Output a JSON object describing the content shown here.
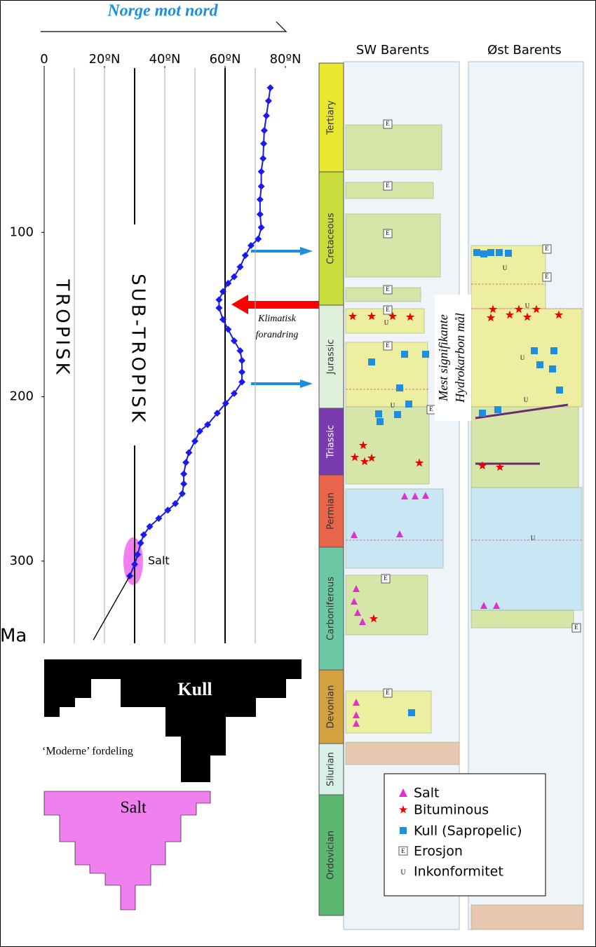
{
  "chart_data": {
    "type": "line",
    "title": "Norge mot nord",
    "xlim": [
      0,
      80
    ],
    "xticks": [
      0,
      {
        "value": 20,
        "label": "20ºN"
      },
      {
        "value": 40,
        "label": "40ºN"
      },
      {
        "value": 60,
        "label": "60ºN"
      },
      {
        "value": 80,
        "label": "80ºN"
      }
    ],
    "xgrid": [
      10,
      20,
      40,
      50,
      70
    ],
    "zone_lines": [
      30,
      60
    ],
    "ylim": [
      0,
      350
    ],
    "yticks": [
      100,
      200,
      300
    ],
    "y_label": "Ma",
    "zone_labels": [
      "TROPISK",
      "SUB-TROPISK"
    ],
    "annotations": [
      "Salt"
    ],
    "series": [
      {
        "color": "#1a1aee",
        "x": [
          75,
          74.4,
          73.7,
          73,
          72.8,
          72.6,
          72,
          72,
          71.6,
          71.6,
          72,
          71,
          68.6,
          66.7,
          65,
          63,
          61,
          59.3,
          58,
          58,
          59.3,
          61,
          63,
          65,
          65.6,
          65.6,
          65.6,
          63,
          60.2,
          57.4,
          54.2,
          51.6,
          50,
          48,
          47,
          46.3,
          46.3,
          45.8,
          43.5,
          41,
          38,
          35,
          33,
          32,
          31,
          30,
          28.4
        ],
        "values": [
          12,
          20,
          29,
          38,
          46,
          55,
          63,
          72,
          80,
          89,
          97,
          104,
          108,
          114,
          121,
          127,
          131,
          136,
          141,
          146,
          153,
          159,
          166,
          172,
          178,
          185,
          191,
          198,
          204,
          210,
          217,
          221,
          227,
          234,
          240,
          247,
          253,
          259,
          265,
          269,
          274,
          279,
          284,
          289,
          296,
          302,
          309
        ]
      },
      {
        "color": "#000000",
        "x": [
          28.4,
          16.3
        ],
        "values": [
          309,
          348
        ]
      }
    ]
  },
  "distribution": {
    "kull": "Kull",
    "label": "‘Moderne’ fordeling",
    "salt": "Salt"
  },
  "arrow_label": [
    "Klimatisk",
    "forandring"
  ],
  "stratigraphy": {
    "columns": [
      "SW Barents",
      "Øst Barents"
    ],
    "periods": [
      "Tertiary",
      "Cretaceous",
      "Jurassic",
      "Triassic",
      "Permian",
      "Carboniferous",
      "Devonian",
      "Silurian",
      "Ordovician"
    ],
    "period_colors": [
      "#e8e830",
      "#c8dc3c",
      "#dff0dc",
      "#7a3ab0",
      "#e8644a",
      "#6cc8a4",
      "#d4a040",
      "#d8f0e8",
      "#5cb870"
    ],
    "target": [
      "Mest signifikante",
      "Hydrokarbon mål"
    ],
    "erosion_mark": "E",
    "unconformity_mark": "U",
    "legend": [
      "Salt",
      "Bituminous",
      "Kull (Sapropelic)",
      "Erosjon",
      "Inkonformitet"
    ]
  }
}
